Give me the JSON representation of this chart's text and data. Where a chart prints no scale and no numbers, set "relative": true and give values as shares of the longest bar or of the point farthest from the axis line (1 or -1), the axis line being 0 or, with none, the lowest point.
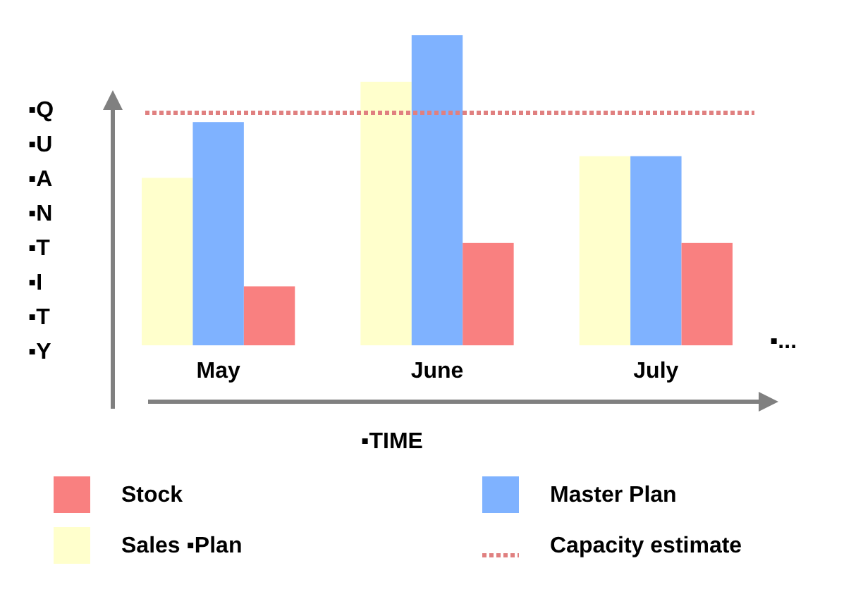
{
  "chart_data": {
    "type": "bar",
    "relative": true,
    "xlabel": "▪TIME",
    "ylabel": "▪Q▪U▪A▪N▪T▪I▪T▪Y",
    "categories": [
      "May",
      "June",
      "July"
    ],
    "series": [
      {
        "name": "Sales ▪Plan",
        "color": "#ffffcc",
        "values": [
          0.54,
          0.85,
          0.61
        ]
      },
      {
        "name": "Master Plan",
        "color": "#7fb2ff",
        "values": [
          0.72,
          1.0,
          0.61
        ]
      },
      {
        "name": "Stock",
        "color": "#f98080",
        "values": [
          0.19,
          0.33,
          0.33
        ]
      }
    ],
    "ref_lines": [
      {
        "axis": "y",
        "value": 0.75,
        "label": "Capacity estimate",
        "color": "#e08080",
        "line_style": "dotted"
      }
    ],
    "annotations": [
      "▪..."
    ],
    "legend": "bottom"
  }
}
